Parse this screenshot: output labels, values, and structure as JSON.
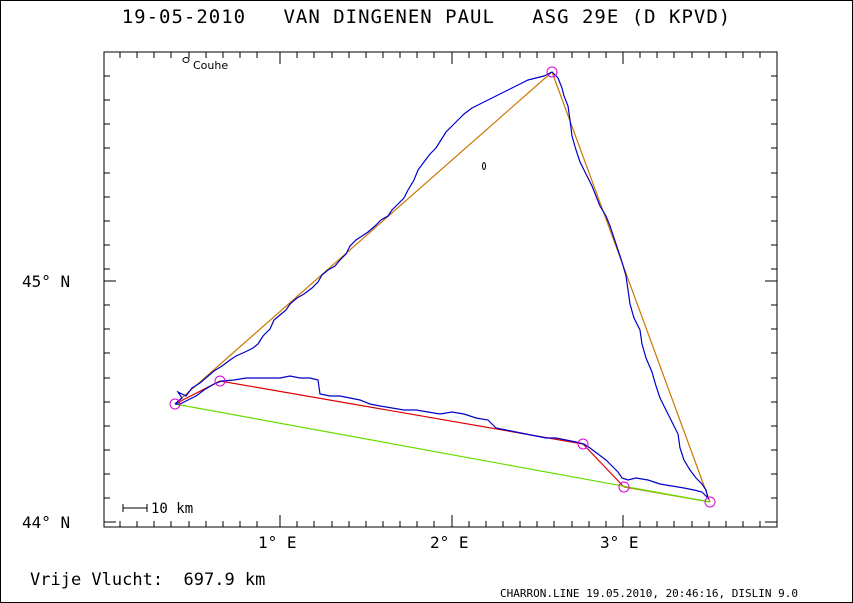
{
  "title": "19-05-2010   VAN DINGENEN PAUL   ASG 29E (D KPVD)",
  "score": {
    "label": "Vrije Vlucht:",
    "value": "697.9 km",
    "text": "Vrije Vlucht:  697.9 km"
  },
  "footer": "CHARRON.LINE 19.05.2010, 20:46:16, DISLIN 9.0",
  "axes": {
    "x_tick_labels": [
      "1° E",
      "2° E",
      "3° E"
    ],
    "y_tick_labels": [
      "45° N",
      "44° N"
    ]
  },
  "scale_bar": "10 km",
  "places": [
    {
      "name": "Couhe",
      "lon": 0.5,
      "lat": 45.93
    }
  ],
  "colors": {
    "track": "#0000cc",
    "leg_orange": "#cc7700",
    "leg_red": "#dd0000",
    "leg_green": "#66dd00",
    "turnpoint": "#dd00dd"
  },
  "turnpoints": [
    {
      "name": "start",
      "lon": 0.43,
      "lat": 44.49
    },
    {
      "name": "tp1",
      "lon": 2.6,
      "lat": 45.86
    },
    {
      "name": "tp2",
      "lon": 3.5,
      "lat": 44.08
    },
    {
      "name": "tp3",
      "lon": 3.0,
      "lat": 44.15
    },
    {
      "name": "tp4",
      "lon": 2.77,
      "lat": 44.33
    },
    {
      "name": "tp5",
      "lon": 0.68,
      "lat": 44.58
    }
  ]
}
